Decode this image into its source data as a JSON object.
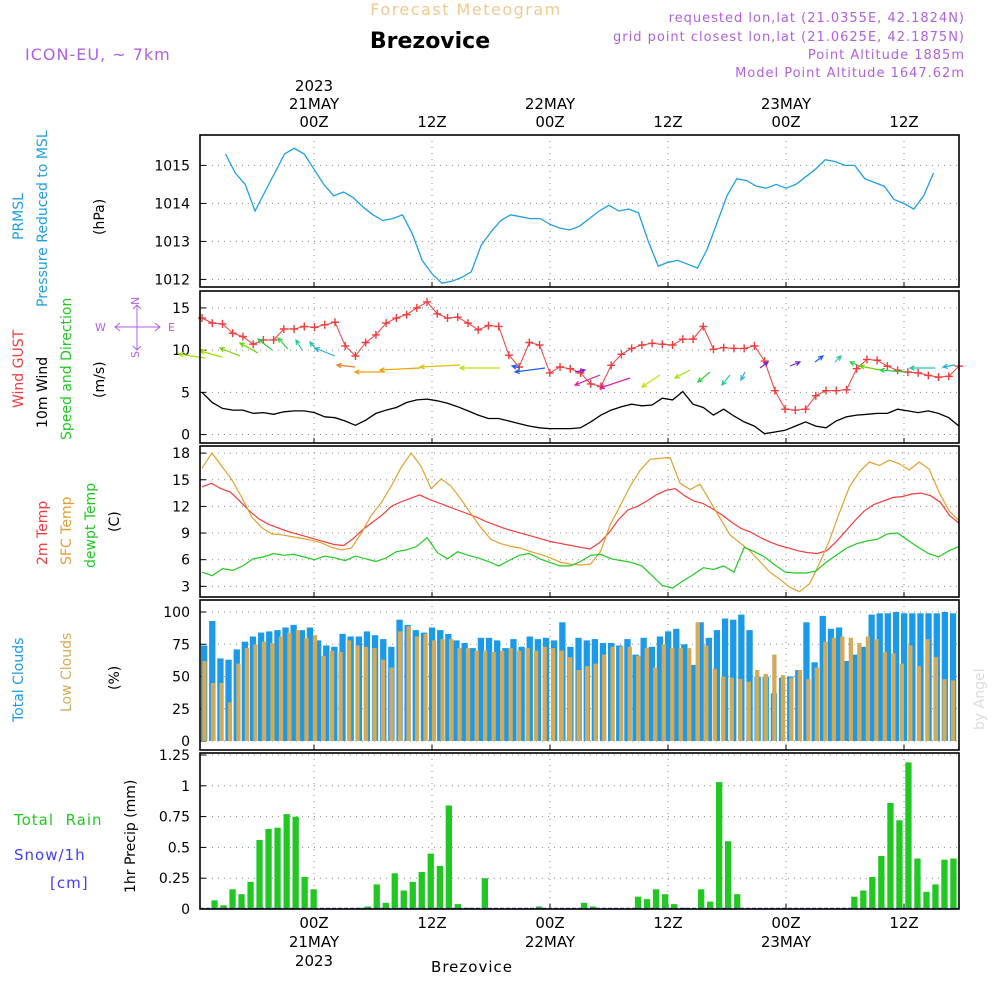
{
  "header": {
    "forecast_title": "Forecast Meteogram",
    "location": "Brezovice",
    "model": "ICON-EU, ~ 7km",
    "requested": "requested lon,lat (21.0355E, 42.1824N)",
    "grid_point": "grid point closest lon,lat (21.0625E, 42.1875N)",
    "point_altitude": "Point Altitude 1885m",
    "model_altitude": "Model Point Altitude 1647.62m",
    "credit": "by Angel"
  },
  "colors": {
    "pressure": "#1f9fe0",
    "gust": "#f03c3c",
    "wind": "#000000",
    "temp": "#f03c3c",
    "sfc_temp": "#e0a030",
    "dewpt": "#22c822",
    "total_clouds": "#1a9ae8",
    "low_clouds": "#d2aa5a",
    "rain": "#22c822",
    "snow": "#4040f0",
    "purple": "#b060e0",
    "header_orange": "#f0c890"
  },
  "x_axis": {
    "top_year": "2023",
    "days": [
      {
        "label": "21MAY",
        "tick": "00Z"
      },
      {
        "label": "22MAY",
        "tick": "00Z"
      },
      {
        "label": "23MAY",
        "tick": "00Z"
      }
    ],
    "noon_label": "12Z",
    "bottom_title": "Brezovice"
  },
  "compass": {
    "n": "N",
    "s": "S",
    "w": "W",
    "e": "E"
  },
  "panels": {
    "pressure": {
      "label1": "PRMSL",
      "label2": "Pressure Reduced to MSL",
      "unit": "(hPa)"
    },
    "wind": {
      "label1": "Wind GUST",
      "label2": "10m Wind",
      "label3": "Speed and Direction",
      "unit": "(m/s)"
    },
    "temp": {
      "label1": "2m Temp",
      "label2": "SFC Temp",
      "label3": "dewpt Temp",
      "unit": "(C)"
    },
    "clouds": {
      "label1": "Total Clouds",
      "label2": "Low Clouds",
      "unit": "(%)"
    },
    "precip": {
      "label1": "Total  Rain",
      "label2": "Snow/1h",
      "label3": "[cm]",
      "unit": "1hr Precip (mm)"
    }
  },
  "chart_data": [
    {
      "type": "line",
      "name": "pressure",
      "x_hours": [
        -9,
        -8,
        -7,
        -6,
        -5,
        -4,
        -3,
        -2,
        -1,
        0,
        1,
        2,
        3,
        4,
        5,
        6,
        7,
        8,
        9,
        10,
        11,
        12,
        13,
        14,
        15,
        16,
        17,
        18,
        19,
        20,
        21,
        22,
        23,
        24,
        25,
        26,
        27,
        28,
        29,
        30,
        31,
        32,
        33,
        34,
        35,
        36,
        37,
        38,
        39,
        40,
        41,
        42,
        43,
        44,
        45,
        46,
        47,
        48,
        49,
        50,
        51,
        52,
        53,
        54,
        55,
        56,
        57,
        58,
        59,
        60,
        61,
        62,
        63,
        64
      ],
      "ylim": [
        1011.8,
        1015.8
      ],
      "yticks": [
        1012,
        1013,
        1014,
        1015
      ],
      "series": [
        {
          "values": [
            1015.3,
            1014.8,
            1014.5,
            1013.8,
            1014.3,
            1014.8,
            1015.3,
            1015.45,
            1015.3,
            1014.9,
            1014.5,
            1014.2,
            1014.3,
            1014.15,
            1013.9,
            1013.7,
            1013.55,
            1013.6,
            1013.7,
            1013.2,
            1012.5,
            1012.15,
            1011.9,
            1011.95,
            1012.05,
            1012.2,
            1012.9,
            1013.25,
            1013.55,
            1013.7,
            1013.65,
            1013.6,
            1013.6,
            1013.45,
            1013.35,
            1013.3,
            1013.4,
            1013.6,
            1013.8,
            1013.95,
            1013.8,
            1013.85,
            1013.75,
            1013.0,
            1012.35,
            1012.45,
            1012.5,
            1012.4,
            1012.3,
            1012.8,
            1013.5,
            1014.2,
            1014.65,
            1014.6,
            1014.45,
            1014.4,
            1014.5,
            1014.4,
            1014.5,
            1014.7,
            1014.9,
            1015.15,
            1015.1,
            1015.0,
            1015.0,
            1014.65,
            1014.55,
            1014.45,
            1014.1,
            1014.0,
            1013.85,
            1014.2,
            1014.8
          ]
        }
      ]
    },
    {
      "type": "line",
      "name": "wind",
      "ylim": [
        -1,
        17
      ],
      "yticks": [
        0,
        5,
        10,
        15
      ],
      "series": [
        {
          "name": "Wind GUST",
          "values": [
            13.8,
            13.2,
            13.1,
            12.0,
            11.6,
            10.7,
            11.2,
            11.2,
            12.5,
            12.5,
            12.8,
            12.7,
            13.0,
            13.3,
            10.5,
            9.3,
            10.9,
            11.8,
            13.2,
            13.8,
            14.2,
            15.0,
            15.7,
            14.3,
            13.8,
            13.9,
            13.2,
            12.4,
            12.9,
            12.8,
            9.4,
            8.0,
            10.9,
            10.6,
            7.3,
            8.0,
            7.8,
            7.3,
            6.0,
            5.7,
            8.2,
            9.5,
            10.2,
            10.6,
            10.8,
            10.7,
            10.6,
            11.3,
            11.3,
            12.8,
            10.1,
            10.3,
            10.2,
            10.2,
            10.5,
            8.7,
            5.2,
            3.0,
            2.9,
            3.0,
            4.6,
            5.2,
            5.2,
            5.3,
            7.8,
            8.9,
            8.8,
            8.1,
            7.6,
            7.4,
            7.3,
            7.0,
            6.8,
            6.9,
            8.1
          ]
        },
        {
          "name": "10m Wind",
          "values": [
            5.0,
            3.8,
            3.1,
            2.9,
            2.9,
            2.5,
            2.6,
            2.4,
            2.7,
            2.8,
            2.8,
            2.6,
            2.1,
            2.0,
            1.6,
            1.1,
            1.7,
            2.5,
            2.9,
            3.2,
            3.8,
            4.1,
            4.2,
            4.0,
            3.7,
            3.3,
            2.8,
            2.3,
            1.9,
            1.9,
            1.6,
            1.3,
            1.0,
            0.8,
            0.7,
            0.7,
            0.7,
            0.8,
            1.5,
            2.3,
            2.9,
            3.3,
            3.6,
            3.4,
            3.5,
            4.3,
            4.1,
            5.1,
            3.6,
            3.2,
            2.3,
            3.0,
            2.2,
            1.5,
            1.0,
            0.1,
            0.3,
            0.5,
            1.0,
            1.5,
            1.0,
            0.8,
            1.6,
            2.1,
            2.3,
            2.4,
            2.5,
            2.5,
            3.0,
            2.8,
            2.6,
            2.8,
            2.5,
            2.0,
            1.0
          ]
        }
      ]
    },
    {
      "type": "line",
      "name": "temperature",
      "ylim": [
        1.8,
        18.8
      ],
      "yticks": [
        3,
        6,
        9,
        12,
        15,
        18
      ],
      "series": [
        {
          "name": "2m Temp",
          "values": [
            14.2,
            14.6,
            14.0,
            13.6,
            12.6,
            11.5,
            10.6,
            10.0,
            9.6,
            9.2,
            8.9,
            8.6,
            8.3,
            8.0,
            7.7,
            7.6,
            8.4,
            9.4,
            10.2,
            11.0,
            12.0,
            12.5,
            12.9,
            13.3,
            12.8,
            12.4,
            12.0,
            11.6,
            11.2,
            10.8,
            10.3,
            9.9,
            9.5,
            9.2,
            8.9,
            8.6,
            8.3,
            8.0,
            7.8,
            7.6,
            7.4,
            7.2,
            7.9,
            9.0,
            10.5,
            11.6,
            12.0,
            12.6,
            13.3,
            13.8,
            14.0,
            13.2,
            12.6,
            12.3,
            11.7,
            11.0,
            10.2,
            9.5,
            9.1,
            8.5,
            8.0,
            7.6,
            7.3,
            7.0,
            6.8,
            6.7,
            7.0,
            8.0,
            9.2,
            10.4,
            11.5,
            12.2,
            12.6,
            13.0,
            13.1,
            13.4,
            13.5,
            13.2,
            12.5,
            11.0,
            10.1
          ]
        },
        {
          "name": "SFC Temp",
          "values": [
            16.3,
            18.0,
            16.5,
            15.0,
            13.0,
            10.8,
            9.6,
            8.9,
            8.8,
            8.6,
            8.4,
            8.2,
            7.9,
            7.4,
            7.1,
            7.3,
            9.0,
            11.0,
            12.4,
            14.3,
            16.4,
            18.0,
            16.5,
            14.0,
            15.1,
            14.3,
            12.8,
            11.2,
            9.6,
            8.3,
            7.8,
            7.5,
            7.3,
            6.9,
            6.6,
            6.2,
            5.7,
            5.5,
            5.4,
            5.5,
            6.9,
            10.0,
            12.1,
            14.3,
            16.1,
            17.3,
            17.4,
            17.5,
            14.6,
            13.9,
            14.5,
            12.6,
            10.7,
            8.8,
            7.9,
            7.0,
            5.8,
            4.6,
            3.8,
            2.9,
            2.4,
            3.3,
            5.6,
            8.2,
            11.3,
            14.2,
            15.9,
            17.0,
            16.6,
            17.2,
            16.8,
            16.1,
            17.0,
            16.2,
            13.6,
            11.5,
            10.4
          ]
        },
        {
          "name": "dewpt Temp",
          "values": [
            4.6,
            4.2,
            5.0,
            4.8,
            5.3,
            6.1,
            6.3,
            6.7,
            6.5,
            6.6,
            6.3,
            6.0,
            6.4,
            6.2,
            5.9,
            6.4,
            6.1,
            5.8,
            6.2,
            6.9,
            7.1,
            7.5,
            8.5,
            6.8,
            6.1,
            6.9,
            6.5,
            6.2,
            5.8,
            5.3,
            5.9,
            6.5,
            6.7,
            6.1,
            5.7,
            5.3,
            5.3,
            5.8,
            6.5,
            6.6,
            6.1,
            5.9,
            5.7,
            5.3,
            4.2,
            3.1,
            2.8,
            3.6,
            4.3,
            5.1,
            4.9,
            5.3,
            4.6,
            7.4,
            6.9,
            6.3,
            5.4,
            4.6,
            4.5,
            4.5,
            4.7,
            5.7,
            6.5,
            7.3,
            7.8,
            8.1,
            8.3,
            8.9,
            9.0,
            8.2,
            7.4,
            6.7,
            6.3,
            7.0,
            7.5
          ]
        }
      ]
    },
    {
      "type": "bar",
      "name": "clouds",
      "ylim": [
        0,
        100
      ],
      "yticks": [
        0,
        25,
        50,
        75,
        100
      ],
      "series": [
        {
          "name": "Total Clouds",
          "values": [
            74,
            93,
            64,
            63,
            71,
            77,
            81,
            84,
            85,
            86,
            88,
            90,
            86,
            88,
            78,
            74,
            73,
            83,
            81,
            81,
            85,
            82,
            79,
            73,
            94,
            90,
            86,
            84,
            88,
            86,
            83,
            78,
            76,
            72,
            80,
            80,
            78,
            72,
            79,
            73,
            81,
            79,
            80,
            78,
            92,
            73,
            80,
            78,
            79,
            76,
            76,
            74,
            79,
            67,
            80,
            73,
            81,
            85,
            87,
            75,
            59,
            92,
            80,
            86,
            95,
            94,
            98,
            86,
            50,
            50,
            37,
            49,
            50,
            55,
            92,
            61,
            97,
            87,
            88,
            62,
            67,
            73,
            98,
            99,
            99,
            100,
            99,
            99,
            99,
            99,
            99,
            100,
            99
          ]
        },
        {
          "name": "Low Clouds",
          "values": [
            62,
            45,
            45,
            30,
            60,
            72,
            75,
            77,
            76,
            81,
            84,
            86,
            80,
            82,
            66,
            70,
            69,
            78,
            74,
            73,
            72,
            63,
            57,
            85,
            89,
            81,
            83,
            78,
            79,
            79,
            72,
            72,
            70,
            70,
            69,
            70,
            72,
            70,
            72,
            70,
            73,
            72,
            70,
            65,
            55,
            58,
            60,
            67,
            73,
            73,
            73,
            66,
            72,
            57,
            75,
            72,
            72,
            72,
            92,
            74,
            56,
            50,
            49,
            48,
            46,
            55,
            52,
            67,
            51,
            49,
            55,
            48,
            57,
            77,
            80,
            81,
            80,
            76,
            81,
            79,
            69,
            68,
            60,
            74,
            58,
            79,
            65,
            48,
            47
          ]
        }
      ]
    },
    {
      "type": "bar",
      "name": "precip",
      "ylim": [
        0,
        1.25
      ],
      "yticks": [
        0,
        0.25,
        0.5,
        0.75,
        1,
        1.25
      ],
      "series": [
        {
          "name": "Total Rain",
          "values": [
            0,
            0.07,
            0.03,
            0.16,
            0.12,
            0.22,
            0.56,
            0.65,
            0.66,
            0.77,
            0.75,
            0.26,
            0.16,
            0,
            0,
            0,
            0,
            0.01,
            0.02,
            0.2,
            0.05,
            0.29,
            0.15,
            0.22,
            0.3,
            0.45,
            0.35,
            0.84,
            0.04,
            0.01,
            0,
            0.25,
            0,
            0,
            0,
            0,
            0,
            0.02,
            0,
            0,
            0,
            0,
            0.05,
            0.02,
            0,
            0,
            0,
            0,
            0.1,
            0.08,
            0.16,
            0.12,
            0.04,
            0.01,
            0,
            0.16,
            0.06,
            1.03,
            0.55,
            0.12,
            0,
            0,
            0,
            0,
            0,
            0,
            0,
            0,
            0,
            0,
            0,
            0,
            0.1,
            0.15,
            0.26,
            0.43,
            0.86,
            0.72,
            1.19,
            0.41,
            0.14,
            0.2,
            0.4,
            0.41
          ]
        }
      ]
    }
  ]
}
